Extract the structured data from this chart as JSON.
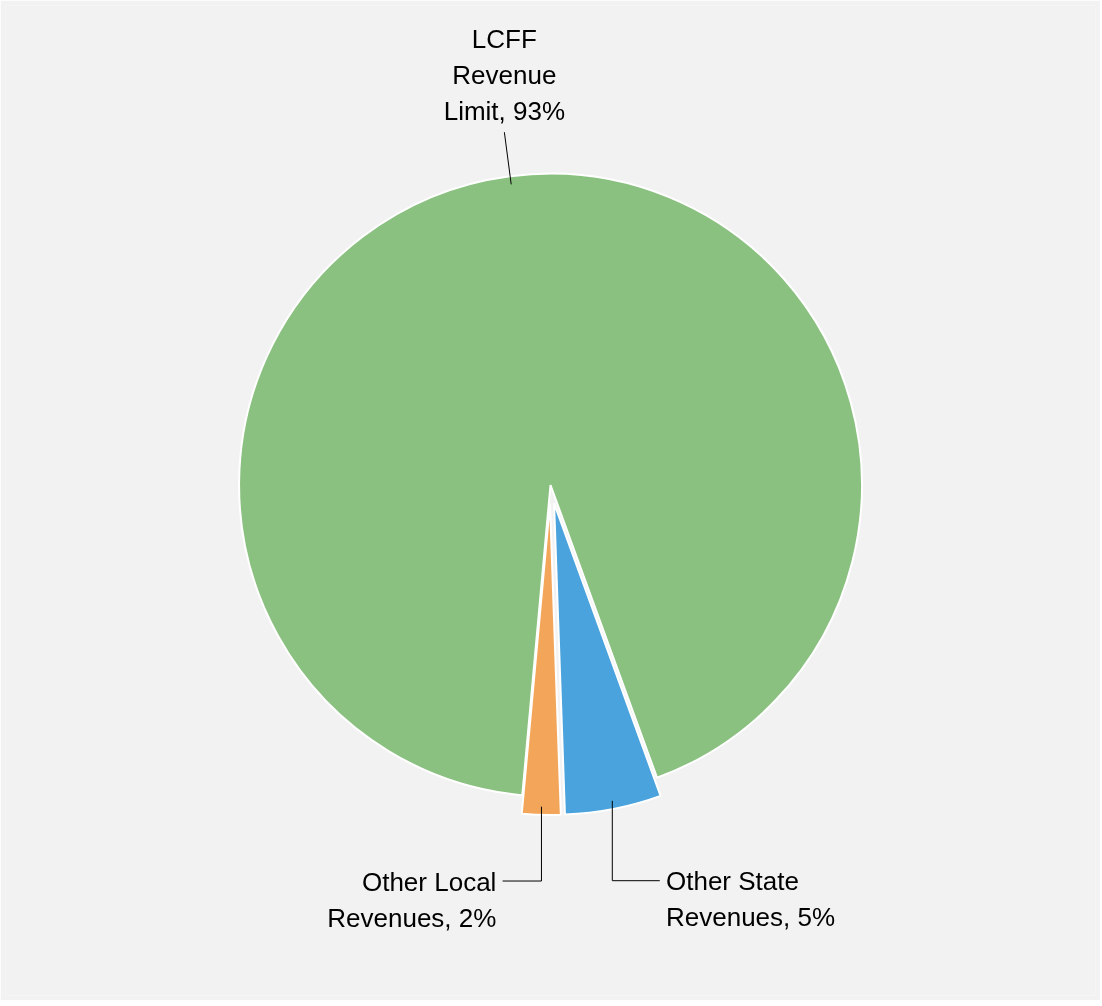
{
  "chart_data": {
    "type": "pie",
    "categories": [
      "LCFF Revenue Limit",
      "Other State Revenues",
      "Other Local Revenues"
    ],
    "values": [
      93,
      5,
      2
    ],
    "value_labels": [
      "93%",
      "5%",
      "2%"
    ],
    "colors": [
      "#8bc180",
      "#4aa3dc",
      "#f3a65a"
    ],
    "data_labels": true,
    "legend": false
  }
}
